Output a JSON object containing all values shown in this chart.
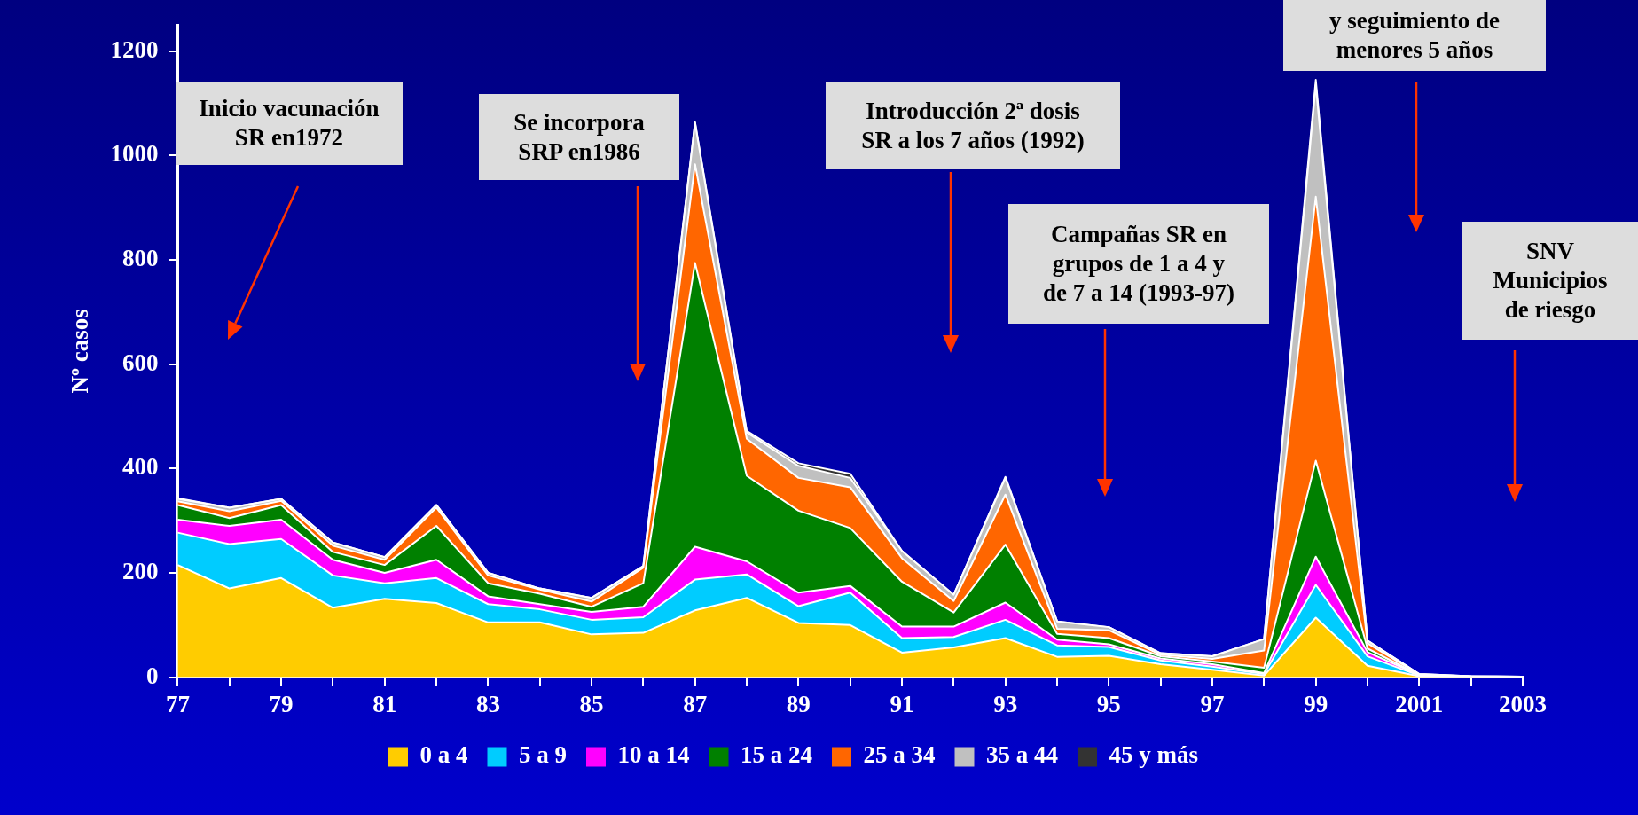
{
  "chart_data": {
    "type": "area",
    "stacked": true,
    "ylabel": "Nº casos",
    "categories": [
      "77",
      null,
      "79",
      null,
      "81",
      null,
      "83",
      null,
      "85",
      null,
      "87",
      null,
      "89",
      null,
      "91",
      null,
      "93",
      null,
      "95",
      null,
      "97",
      null,
      "99",
      null,
      "2001",
      null,
      "2003"
    ],
    "series": [
      {
        "name": "0 a 4",
        "color": "#ffcc00",
        "values": [
          215,
          170,
          190,
          133,
          150,
          142,
          105,
          105,
          82,
          85,
          128,
          152,
          104,
          100,
          47,
          57,
          75,
          39,
          41,
          25,
          14,
          3,
          114,
          22,
          2,
          1,
          0
        ]
      },
      {
        "name": "5 a 9",
        "color": "#00ccff",
        "values": [
          62,
          85,
          75,
          62,
          30,
          48,
          35,
          25,
          28,
          30,
          59,
          45,
          32,
          62,
          28,
          20,
          35,
          22,
          17,
          7,
          6,
          3,
          63,
          18,
          1,
          0,
          0
        ]
      },
      {
        "name": "10 a 14",
        "color": "#ff00ff",
        "values": [
          25,
          35,
          37,
          30,
          20,
          35,
          15,
          10,
          15,
          20,
          63,
          25,
          26,
          13,
          22,
          20,
          33,
          11,
          5,
          4,
          5,
          2,
          54,
          8,
          1,
          0,
          0
        ]
      },
      {
        "name": "15 a 24",
        "color": "#008000",
        "values": [
          28,
          15,
          28,
          15,
          15,
          65,
          25,
          20,
          10,
          45,
          544,
          164,
          157,
          111,
          86,
          27,
          111,
          11,
          12,
          4,
          5,
          10,
          184,
          7,
          0,
          0,
          0
        ]
      },
      {
        "name": "25 a 34",
        "color": "#ff6600",
        "values": [
          7,
          13,
          8,
          12,
          10,
          35,
          15,
          8,
          10,
          30,
          189,
          71,
          63,
          78,
          45,
          22,
          96,
          10,
          15,
          3,
          5,
          33,
          506,
          10,
          1,
          1,
          1
        ]
      },
      {
        "name": "35 a 44",
        "color": "#c0c0c0",
        "values": [
          5,
          7,
          4,
          6,
          5,
          5,
          5,
          2,
          7,
          3,
          79,
          12,
          23,
          18,
          14,
          12,
          32,
          14,
          6,
          3,
          5,
          22,
          214,
          5,
          1,
          0,
          0
        ]
      },
      {
        "name": "45 y más",
        "color": "#333333",
        "values": [
          1,
          0,
          0,
          0,
          0,
          0,
          0,
          0,
          0,
          0,
          2,
          3,
          5,
          8,
          0,
          0,
          2,
          0,
          0,
          0,
          0,
          0,
          10,
          0,
          0,
          0,
          0
        ]
      }
    ],
    "ylim": [
      0,
      1250
    ],
    "yticks": [
      0,
      200,
      400,
      600,
      800,
      1000,
      1200
    ],
    "grid": false,
    "legend": "bottom",
    "annotations": [
      "Inicio vacunación\nSR en1972",
      "Se incorpora\nSRP en1986",
      "Introducción 2ª dosis\nSR a los 7 años (1992)",
      "Campañas SR en\ngrupos de 1 a 4 y\nde 7 a 14 (1993-97)",
      "y seguimiento de\nmenores 5 años",
      "SNV\nMunicipios\nde riesgo"
    ]
  }
}
